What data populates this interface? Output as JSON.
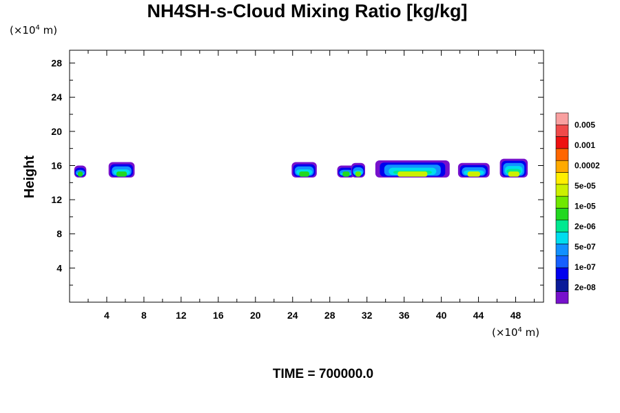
{
  "chart_data": {
    "type": "heatmap",
    "title": "NH4SH-s-Cloud Mixing Ratio [kg/kg]",
    "ylabel": "Height",
    "x_unit": {
      "prefix": "(×10",
      "exp": "4",
      "suffix": " m)"
    },
    "y_unit": {
      "prefix": "(×10",
      "exp": "4",
      "suffix": " m)"
    },
    "xlim": [
      0,
      51
    ],
    "ylim": [
      0,
      29.5
    ],
    "x_ticks": [
      4,
      8,
      12,
      16,
      20,
      24,
      28,
      32,
      36,
      40,
      44,
      48
    ],
    "y_ticks": [
      4,
      8,
      12,
      16,
      20,
      24,
      28
    ],
    "time_label": "TIME = 700000.0",
    "legend": {
      "colors": [
        "#f9a0a0",
        "#f04a4a",
        "#ee1111",
        "#ff6600",
        "#ffaa00",
        "#ffee00",
        "#ccf000",
        "#70e800",
        "#22d820",
        "#00e890",
        "#00ddee",
        "#1190ff",
        "#1660ff",
        "#0000ee",
        "#0a1a99",
        "#7711cc"
      ],
      "labels": [
        "0.005",
        "0.001",
        "0.0002",
        "5e-05",
        "1e-05",
        "2e-06",
        "5e-07",
        "1e-07",
        "2e-08"
      ]
    },
    "cloud_layer": [
      {
        "x0": 0.5,
        "x1": 1.8,
        "top": 16.0,
        "core": "#22d820"
      },
      {
        "x0": 4.2,
        "x1": 7.0,
        "top": 16.4,
        "core": "#22d820"
      },
      {
        "x0": 23.9,
        "x1": 26.6,
        "top": 16.4,
        "core": "#22d820"
      },
      {
        "x0": 28.8,
        "x1": 30.7,
        "top": 16.0,
        "core": "#22d820"
      },
      {
        "x0": 30.3,
        "x1": 31.8,
        "top": 16.3,
        "core": "#70e800"
      },
      {
        "x0": 32.9,
        "x1": 40.9,
        "top": 16.6,
        "core": "#ccf000"
      },
      {
        "x0": 41.8,
        "x1": 45.2,
        "top": 16.3,
        "core": "#ccf000"
      },
      {
        "x0": 46.3,
        "x1": 49.3,
        "top": 16.8,
        "core": "#ccf000"
      }
    ]
  }
}
